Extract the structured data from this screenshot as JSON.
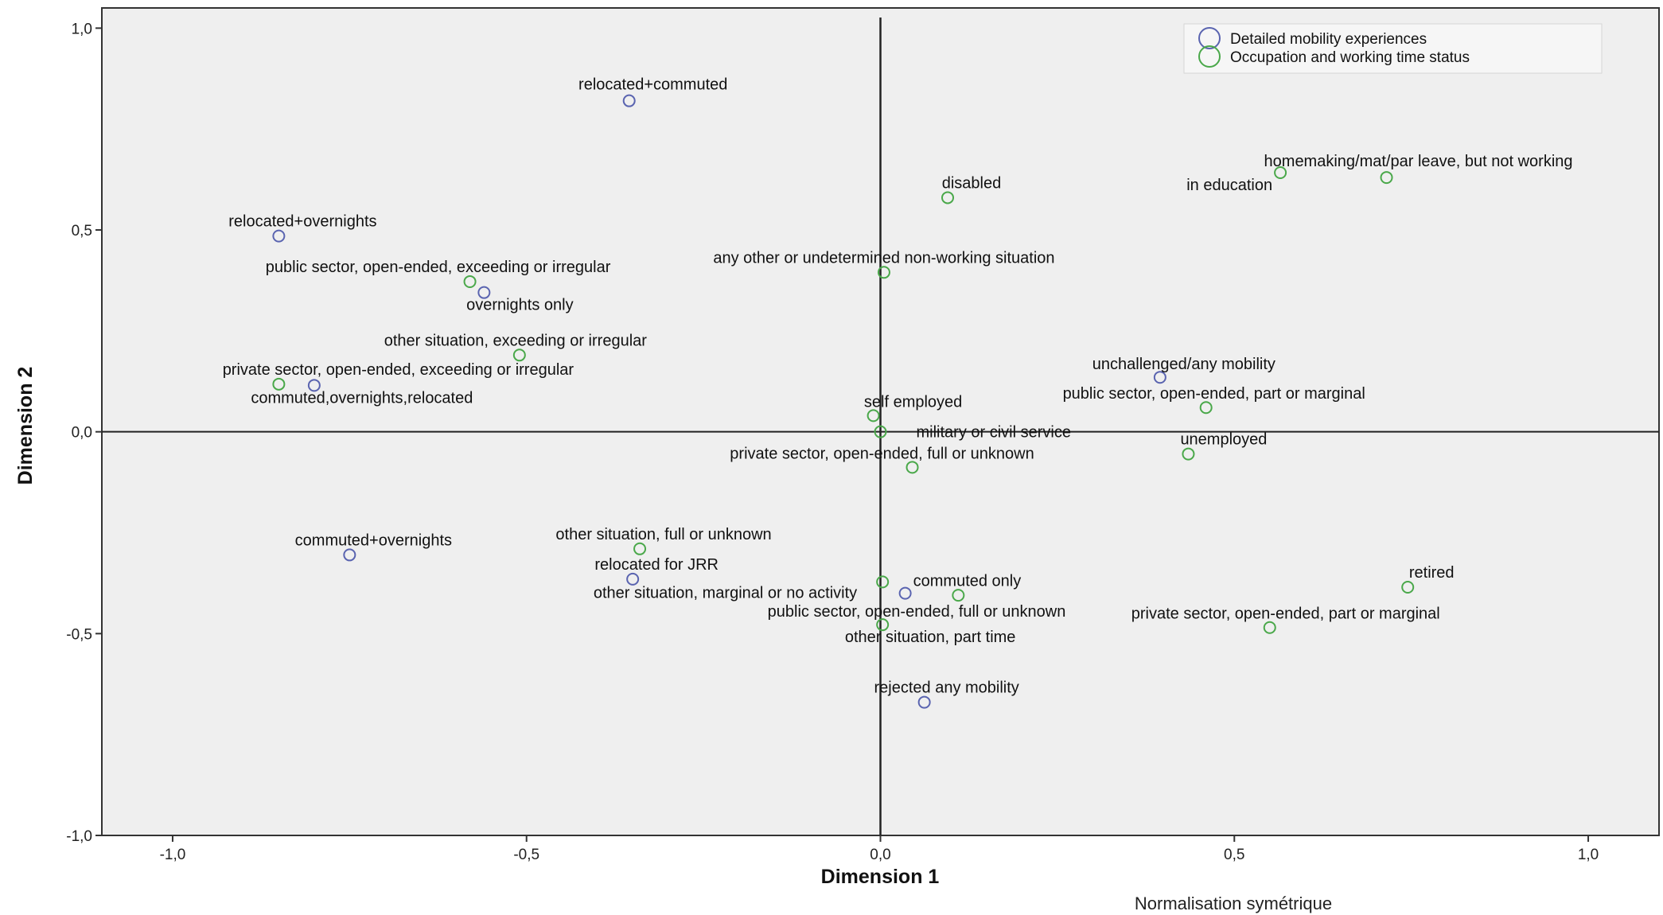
{
  "chart_data": {
    "type": "scatter",
    "xlabel": "Dimension 1",
    "ylabel": "Dimension 2",
    "footnote": "Normalisation symétrique",
    "xlim": [
      -1.1,
      1.1
    ],
    "ylim": [
      -1.0,
      1.05
    ],
    "xticks": [
      -1.0,
      -0.5,
      0.0,
      0.5,
      1.0
    ],
    "yticks": [
      -1.0,
      -0.5,
      0.0,
      0.5,
      1.0
    ],
    "xtick_labels": [
      "-1,0",
      "-0,5",
      "0,0",
      "0,5",
      "1,0"
    ],
    "ytick_labels": [
      "-1,0",
      "-0,5",
      "0,0",
      "0,5",
      "1,0"
    ],
    "grid": false,
    "reference_lines": {
      "x": 0,
      "y": 0
    },
    "legend_position": "top-right",
    "colors": {
      "plot_bg": "#efefef",
      "frame": "#333333",
      "axis_line": "#222222"
    },
    "series": [
      {
        "name": "Detailed mobility experiences",
        "color": "#5a64b0",
        "points": [
          {
            "label": "relocated+commuted",
            "x": -0.355,
            "y": 0.82
          },
          {
            "label": "relocated+overnights",
            "x": -0.85,
            "y": 0.485
          },
          {
            "label": "overnights only",
            "x": -0.56,
            "y": 0.345
          },
          {
            "label": "commuted,overnights,relocated",
            "x": -0.8,
            "y": 0.115
          },
          {
            "label": "unchallenged/any mobility",
            "x": 0.395,
            "y": 0.135
          },
          {
            "label": "commuted+overnights",
            "x": -0.75,
            "y": -0.305
          },
          {
            "label": "relocated for JRR",
            "x": -0.35,
            "y": -0.365
          },
          {
            "label": "commuted only",
            "x": 0.035,
            "y": -0.4
          },
          {
            "label": "rejected any mobility",
            "x": 0.062,
            "y": -0.67
          }
        ]
      },
      {
        "name": "Occupation and working time status",
        "color": "#4aa84a",
        "points": [
          {
            "label": "homemaking/mat/par leave, but not working",
            "x": 0.715,
            "y": 0.63
          },
          {
            "label": "in education",
            "x": 0.565,
            "y": 0.642
          },
          {
            "label": "disabled",
            "x": 0.095,
            "y": 0.58
          },
          {
            "label": "any other or undetermined non-working situation",
            "x": 0.005,
            "y": 0.395
          },
          {
            "label": "public sector, open-ended, exceeding or irregular",
            "x": -0.58,
            "y": 0.372
          },
          {
            "label": "other situation, exceeding or irregular",
            "x": -0.51,
            "y": 0.19
          },
          {
            "label": "private sector, open-ended, exceeding or irregular",
            "x": -0.85,
            "y": 0.118
          },
          {
            "label": "public sector, open-ended, part or marginal",
            "x": 0.46,
            "y": 0.06
          },
          {
            "label": "self employed",
            "x": -0.01,
            "y": 0.04
          },
          {
            "label": "military or civil service",
            "x": 0.0,
            "y": 0.0
          },
          {
            "label": "unemployed",
            "x": 0.435,
            "y": -0.055
          },
          {
            "label": "private sector, open-ended, full or unknown",
            "x": 0.045,
            "y": -0.088
          },
          {
            "label": "other situation, full or unknown",
            "x": -0.34,
            "y": -0.29
          },
          {
            "label": "other situation, marginal or no activity",
            "x": 0.003,
            "y": -0.372
          },
          {
            "label": "public sector, open-ended, full or unknown",
            "x": 0.11,
            "y": -0.405
          },
          {
            "label": "other situation, part time",
            "x": 0.003,
            "y": -0.478
          },
          {
            "label": "retired",
            "x": 0.745,
            "y": -0.385
          },
          {
            "label": "private sector, open-ended, part or marginal",
            "x": 0.55,
            "y": -0.485
          }
        ]
      }
    ]
  }
}
